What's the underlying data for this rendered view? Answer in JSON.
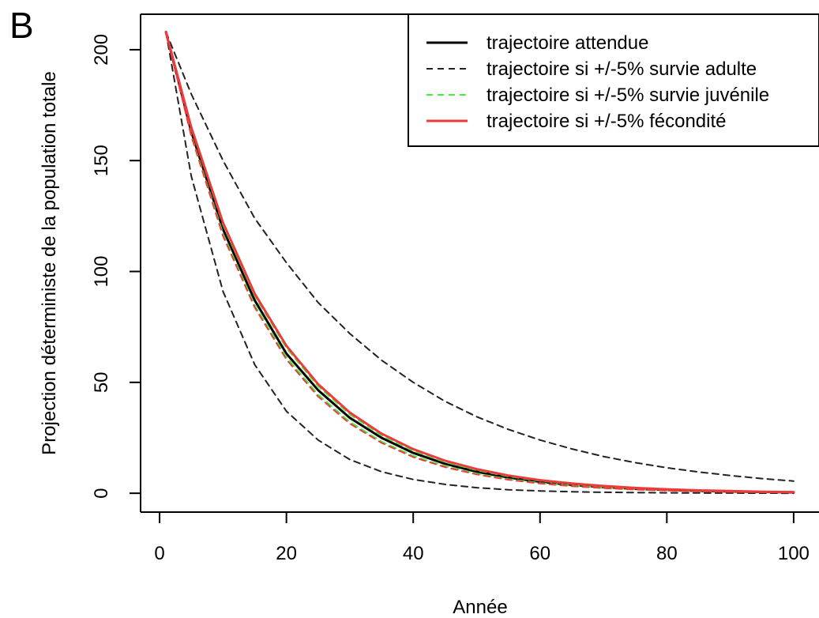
{
  "panel_label": "B",
  "chart_data": {
    "type": "line",
    "title": "",
    "xlabel": "Année",
    "ylabel": "Projection déterministe de la population totale",
    "xlim": [
      -3,
      104
    ],
    "ylim": [
      -8.5,
      216
    ],
    "xticks": [
      0,
      20,
      40,
      60,
      80,
      100
    ],
    "yticks": [
      0,
      50,
      100,
      150,
      200
    ],
    "legend_position": "top-right",
    "series": [
      {
        "name": "trajectoire attendue",
        "color": "#000000",
        "dash": "solid",
        "x": [
          1,
          5,
          10,
          15,
          20,
          25,
          30,
          35,
          40,
          45,
          50,
          55,
          60,
          65,
          70,
          75,
          80,
          85,
          90,
          95,
          100
        ],
        "y": [
          208,
          163,
          119,
          87,
          63,
          46.5,
          34,
          25,
          18.2,
          13.3,
          9.7,
          7.1,
          5.2,
          3.8,
          2.8,
          2.0,
          1.5,
          1.1,
          0.8,
          0.6,
          0.4
        ]
      },
      {
        "name": "trajectoire si +/-5% survie adulte",
        "color": "#222222",
        "dash": "dashed",
        "x": [
          1,
          5,
          10,
          15,
          20,
          25,
          30,
          35,
          40,
          45,
          50,
          55,
          60,
          65,
          70,
          75,
          80,
          85,
          90,
          95,
          100
        ],
        "y": [
          208,
          180,
          150,
          124,
          104,
          86,
          72,
          60,
          50,
          41.5,
          34.5,
          28.8,
          24,
          20,
          16.6,
          13.8,
          11.5,
          9.6,
          8,
          6.6,
          5.5
        ]
      },
      {
        "name": "",
        "color": "#222222",
        "dash": "dashed",
        "x": [
          1,
          5,
          10,
          15,
          20,
          25,
          30,
          35,
          40,
          45,
          50,
          55,
          60,
          65,
          70,
          75,
          80,
          85,
          90,
          95,
          100
        ],
        "y": [
          208,
          143,
          91,
          58,
          37,
          24,
          15.2,
          9.7,
          6.2,
          4,
          2.5,
          1.6,
          1.05,
          0.7,
          0.45,
          0.3,
          0.2,
          0.12,
          0.08,
          0.05,
          0.03
        ]
      },
      {
        "name": "trajectoire si +/-5% survie juvénile",
        "color": "#44ee44",
        "dash": "dashed",
        "x": [
          1,
          5,
          10,
          15,
          20,
          25,
          30,
          35,
          40,
          45,
          50,
          55,
          60,
          65,
          70,
          75,
          80,
          85,
          90,
          95,
          100
        ],
        "y": [
          208,
          164.5,
          121,
          89,
          65.5,
          48.2,
          35.5,
          26.1,
          19.2,
          14.1,
          10.4,
          7.6,
          5.6,
          4.1,
          3.0,
          2.2,
          1.6,
          1.2,
          0.9,
          0.7,
          0.5
        ]
      },
      {
        "name": "",
        "color": "#44ee44",
        "dash": "dashed",
        "x": [
          1,
          5,
          10,
          15,
          20,
          25,
          30,
          35,
          40,
          45,
          50,
          55,
          60,
          65,
          70,
          75,
          80,
          85,
          90,
          95,
          100
        ],
        "y": [
          208,
          161.5,
          117,
          84.8,
          61.4,
          44.5,
          32.2,
          23.3,
          16.9,
          12.2,
          8.9,
          6.4,
          4.6,
          3.4,
          2.4,
          1.8,
          1.3,
          0.9,
          0.7,
          0.5,
          0.35
        ]
      },
      {
        "name": "trajectoire si +/-5% fécondité",
        "color": "#ee3a3a",
        "dash": "solid",
        "x": [
          1,
          5,
          10,
          15,
          20,
          25,
          30,
          35,
          40,
          45,
          50,
          55,
          60,
          65,
          70,
          75,
          80,
          85,
          90,
          95,
          100
        ],
        "y": [
          208,
          165,
          122,
          90,
          66.5,
          49.2,
          36.4,
          26.9,
          19.9,
          14.7,
          10.9,
          8.0,
          5.9,
          4.4,
          3.3,
          2.4,
          1.8,
          1.3,
          1.0,
          0.7,
          0.55
        ]
      },
      {
        "name": "",
        "color": "#ee3a3a",
        "dash": "dashed",
        "x": [
          1,
          5,
          10,
          15,
          20,
          25,
          30,
          35,
          40,
          45,
          50,
          55,
          60,
          65,
          70,
          75,
          80,
          85,
          90,
          95,
          100
        ],
        "y": [
          208,
          161,
          116,
          83.8,
          60.4,
          43.6,
          31.4,
          22.7,
          16.3,
          11.8,
          8.5,
          6.1,
          4.4,
          3.2,
          2.3,
          1.65,
          1.2,
          0.85,
          0.6,
          0.45,
          0.3
        ]
      }
    ]
  }
}
